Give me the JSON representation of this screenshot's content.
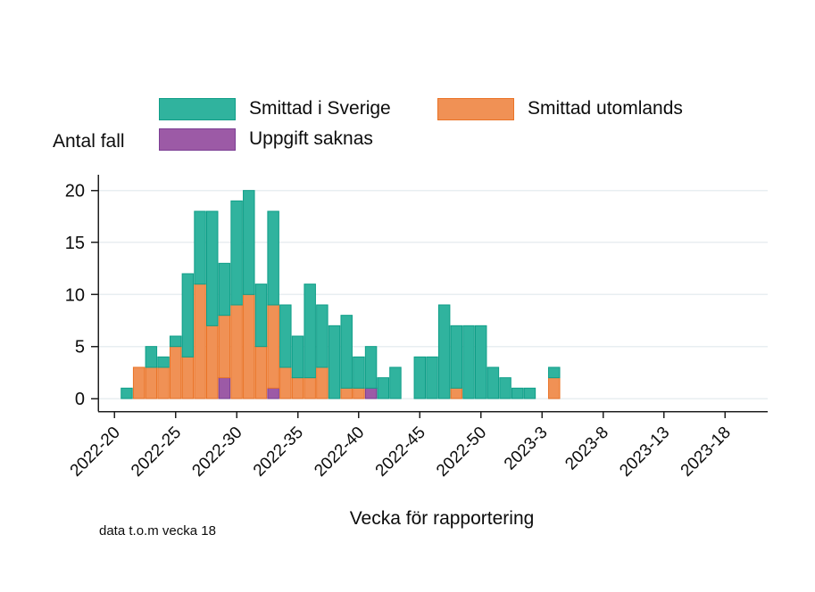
{
  "legend": [
    {
      "label": "Smittad i Sverige",
      "color": "#30b39e",
      "border": "#0f9e88"
    },
    {
      "label": "Smittad utomlands",
      "color": "#f09155",
      "border": "#ea7326"
    },
    {
      "label": "Uppgift saknas",
      "color": "#9c5aa6",
      "border": "#7c3e94"
    }
  ],
  "chart_data": {
    "type": "bar",
    "stacked": true,
    "ylabel": "Antal fall",
    "xlabel": "Vecka för rapportering",
    "caption": "data t.o.m vecka 18",
    "ylim": [
      0,
      20
    ],
    "yticks": [
      0,
      5,
      10,
      15,
      20
    ],
    "grid": true,
    "legend_position": "top",
    "categories": [
      "2022-20",
      "2022-21",
      "2022-22",
      "2022-23",
      "2022-24",
      "2022-25",
      "2022-26",
      "2022-27",
      "2022-28",
      "2022-29",
      "2022-30",
      "2022-31",
      "2022-32",
      "2022-33",
      "2022-34",
      "2022-35",
      "2022-36",
      "2022-37",
      "2022-38",
      "2022-39",
      "2022-40",
      "2022-41",
      "2022-42",
      "2022-43",
      "2022-44",
      "2022-45",
      "2022-46",
      "2022-47",
      "2022-48",
      "2022-49",
      "2022-50",
      "2022-51",
      "2022-52",
      "2023-1",
      "2023-2",
      "2023-3",
      "2023-4",
      "2023-5",
      "2023-6",
      "2023-7",
      "2023-8",
      "2023-9",
      "2023-10",
      "2023-11",
      "2023-12",
      "2023-13",
      "2023-14",
      "2023-15",
      "2023-16",
      "2023-17",
      "2023-18"
    ],
    "xtick_indices": [
      0,
      5,
      10,
      15,
      20,
      25,
      30,
      35,
      40,
      45,
      50
    ],
    "xtick_labels": [
      "2022-20",
      "2022-25",
      "2022-30",
      "2022-35",
      "2022-40",
      "2022-45",
      "2022-50",
      "2023-3",
      "2023-8",
      "2023-13",
      "2023-18"
    ],
    "series": [
      {
        "name": "Uppgift saknas",
        "color": "#9c5aa6",
        "stroke": "#7c3e94",
        "values": [
          0,
          0,
          0,
          0,
          0,
          0,
          0,
          0,
          0,
          2,
          0,
          0,
          0,
          1,
          0,
          0,
          0,
          0,
          0,
          0,
          0,
          1,
          0,
          0,
          0,
          0,
          0,
          0,
          0,
          0,
          0,
          0,
          0,
          0,
          0,
          0,
          0,
          0,
          0,
          0,
          0,
          0,
          0,
          0,
          0,
          0,
          0,
          0,
          0,
          0,
          0
        ]
      },
      {
        "name": "Smittad utomlands",
        "color": "#f09155",
        "stroke": "#ea7326",
        "values": [
          0,
          0,
          3,
          3,
          3,
          5,
          4,
          11,
          7,
          6,
          9,
          10,
          5,
          8,
          3,
          2,
          2,
          3,
          0,
          1,
          1,
          0,
          0,
          0,
          0,
          0,
          0,
          0,
          1,
          0,
          0,
          0,
          0,
          0,
          0,
          0,
          2,
          0,
          0,
          0,
          0,
          0,
          0,
          0,
          0,
          0,
          0,
          0,
          0,
          0,
          0
        ]
      },
      {
        "name": "Smittad i Sverige",
        "color": "#30b39e",
        "stroke": "#0f9e88",
        "values": [
          0,
          1,
          0,
          2,
          1,
          1,
          8,
          7,
          11,
          5,
          10,
          10,
          6,
          9,
          6,
          4,
          9,
          6,
          7,
          7,
          3,
          4,
          2,
          3,
          0,
          4,
          4,
          9,
          6,
          7,
          7,
          3,
          2,
          1,
          1,
          0,
          1,
          0,
          0,
          0,
          0,
          0,
          0,
          0,
          0,
          0,
          0,
          0,
          0,
          0,
          0
        ]
      }
    ],
    "colors": {
      "grid": "#e8eef1",
      "axis": "#1f1f1f",
      "text": "#0c0c0c"
    }
  }
}
